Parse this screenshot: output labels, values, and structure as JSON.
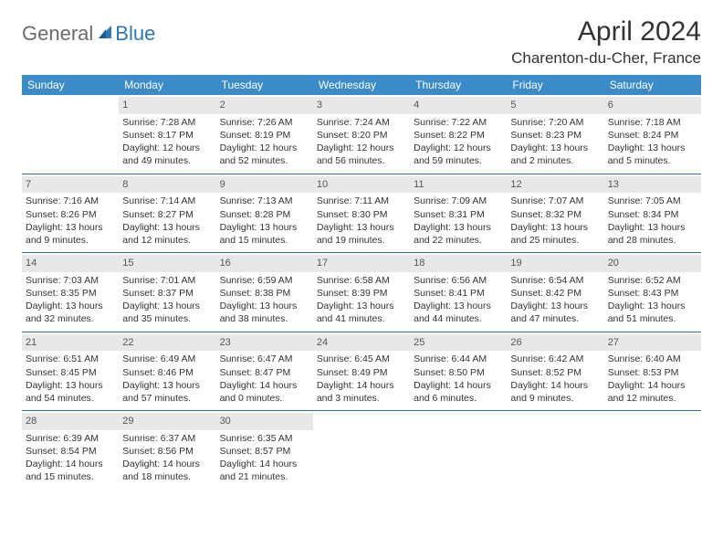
{
  "brand": {
    "part1": "General",
    "part2": "Blue"
  },
  "title": "April 2024",
  "location": "Charenton-du-Cher, France",
  "colors": {
    "header_bg": "#3b8bc8",
    "header_text": "#ffffff",
    "daynum_bg": "#e8e8e8",
    "cell_border": "#2a6fa5",
    "logo_gray": "#6b6b6b",
    "logo_blue": "#2a7ab9"
  },
  "daysOfWeek": [
    "Sunday",
    "Monday",
    "Tuesday",
    "Wednesday",
    "Thursday",
    "Friday",
    "Saturday"
  ],
  "startWeekday": 1,
  "daysInMonth": 30,
  "entries": {
    "1": {
      "sunrise": "7:28 AM",
      "sunset": "8:17 PM",
      "daylight": "12 hours and 49 minutes."
    },
    "2": {
      "sunrise": "7:26 AM",
      "sunset": "8:19 PM",
      "daylight": "12 hours and 52 minutes."
    },
    "3": {
      "sunrise": "7:24 AM",
      "sunset": "8:20 PM",
      "daylight": "12 hours and 56 minutes."
    },
    "4": {
      "sunrise": "7:22 AM",
      "sunset": "8:22 PM",
      "daylight": "12 hours and 59 minutes."
    },
    "5": {
      "sunrise": "7:20 AM",
      "sunset": "8:23 PM",
      "daylight": "13 hours and 2 minutes."
    },
    "6": {
      "sunrise": "7:18 AM",
      "sunset": "8:24 PM",
      "daylight": "13 hours and 5 minutes."
    },
    "7": {
      "sunrise": "7:16 AM",
      "sunset": "8:26 PM",
      "daylight": "13 hours and 9 minutes."
    },
    "8": {
      "sunrise": "7:14 AM",
      "sunset": "8:27 PM",
      "daylight": "13 hours and 12 minutes."
    },
    "9": {
      "sunrise": "7:13 AM",
      "sunset": "8:28 PM",
      "daylight": "13 hours and 15 minutes."
    },
    "10": {
      "sunrise": "7:11 AM",
      "sunset": "8:30 PM",
      "daylight": "13 hours and 19 minutes."
    },
    "11": {
      "sunrise": "7:09 AM",
      "sunset": "8:31 PM",
      "daylight": "13 hours and 22 minutes."
    },
    "12": {
      "sunrise": "7:07 AM",
      "sunset": "8:32 PM",
      "daylight": "13 hours and 25 minutes."
    },
    "13": {
      "sunrise": "7:05 AM",
      "sunset": "8:34 PM",
      "daylight": "13 hours and 28 minutes."
    },
    "14": {
      "sunrise": "7:03 AM",
      "sunset": "8:35 PM",
      "daylight": "13 hours and 32 minutes."
    },
    "15": {
      "sunrise": "7:01 AM",
      "sunset": "8:37 PM",
      "daylight": "13 hours and 35 minutes."
    },
    "16": {
      "sunrise": "6:59 AM",
      "sunset": "8:38 PM",
      "daylight": "13 hours and 38 minutes."
    },
    "17": {
      "sunrise": "6:58 AM",
      "sunset": "8:39 PM",
      "daylight": "13 hours and 41 minutes."
    },
    "18": {
      "sunrise": "6:56 AM",
      "sunset": "8:41 PM",
      "daylight": "13 hours and 44 minutes."
    },
    "19": {
      "sunrise": "6:54 AM",
      "sunset": "8:42 PM",
      "daylight": "13 hours and 47 minutes."
    },
    "20": {
      "sunrise": "6:52 AM",
      "sunset": "8:43 PM",
      "daylight": "13 hours and 51 minutes."
    },
    "21": {
      "sunrise": "6:51 AM",
      "sunset": "8:45 PM",
      "daylight": "13 hours and 54 minutes."
    },
    "22": {
      "sunrise": "6:49 AM",
      "sunset": "8:46 PM",
      "daylight": "13 hours and 57 minutes."
    },
    "23": {
      "sunrise": "6:47 AM",
      "sunset": "8:47 PM",
      "daylight": "14 hours and 0 minutes."
    },
    "24": {
      "sunrise": "6:45 AM",
      "sunset": "8:49 PM",
      "daylight": "14 hours and 3 minutes."
    },
    "25": {
      "sunrise": "6:44 AM",
      "sunset": "8:50 PM",
      "daylight": "14 hours and 6 minutes."
    },
    "26": {
      "sunrise": "6:42 AM",
      "sunset": "8:52 PM",
      "daylight": "14 hours and 9 minutes."
    },
    "27": {
      "sunrise": "6:40 AM",
      "sunset": "8:53 PM",
      "daylight": "14 hours and 12 minutes."
    },
    "28": {
      "sunrise": "6:39 AM",
      "sunset": "8:54 PM",
      "daylight": "14 hours and 15 minutes."
    },
    "29": {
      "sunrise": "6:37 AM",
      "sunset": "8:56 PM",
      "daylight": "14 hours and 18 minutes."
    },
    "30": {
      "sunrise": "6:35 AM",
      "sunset": "8:57 PM",
      "daylight": "14 hours and 21 minutes."
    }
  },
  "labels": {
    "sunrise": "Sunrise:",
    "sunset": "Sunset:",
    "daylight": "Daylight:"
  }
}
